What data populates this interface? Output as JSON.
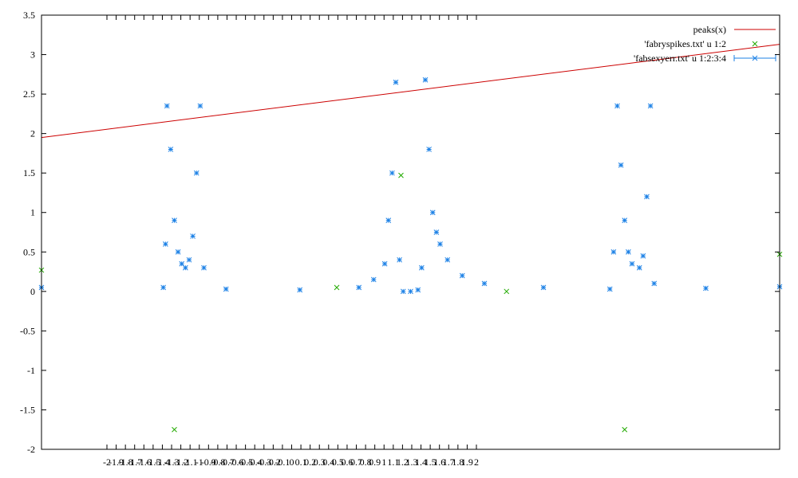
{
  "chart_data": {
    "type": "scatter",
    "title": "",
    "xlabel": "",
    "ylabel": "",
    "xlim": [
      0,
      1
    ],
    "ylim": [
      -2,
      3.5
    ],
    "grid": false,
    "legend_position": "top-right",
    "y_ticks": [
      "-2",
      "-1.5",
      "-1",
      "-0.5",
      "0",
      "0.5",
      "1",
      "1.5",
      "2",
      "2.5",
      "3",
      "3.5"
    ],
    "x_ticks": [
      "-2",
      "-1.9",
      "-1.8",
      "-1.7",
      "-1.6",
      "-1.5",
      "-1.4",
      "-1.3",
      "-1.2",
      "-1.1",
      "-1",
      "-0.9",
      "-0.8",
      "-0.7",
      "-0.6",
      "-0.5",
      "-0.4",
      "-0.3",
      "-0.2",
      "-0.1",
      "0",
      "0.1",
      "0.2",
      "0.3",
      "0.4",
      "0.5",
      "0.6",
      "0.7",
      "0.8",
      "0.9",
      "1",
      "1.1",
      "1.2",
      "1.3",
      "1.4",
      "1.5",
      "1.6",
      "1.7",
      "1.8",
      "1.9",
      "2"
    ],
    "series": [
      {
        "name": "peaks(x)",
        "kind": "line",
        "color": "#cc0000",
        "x": [
          0,
          1
        ],
        "y": [
          1.95,
          3.13
        ]
      },
      {
        "name": "'fabryspikes.txt' u 1:2",
        "kind": "scatter",
        "marker": "x",
        "color": "#22aa00",
        "x": [
          0,
          0.18,
          0.4,
          0.487,
          0.63,
          0.79,
          1
        ],
        "y": [
          0.27,
          -1.75,
          0.05,
          1.47,
          0.0,
          -1.75,
          0.47
        ]
      },
      {
        "name": "'fabsexyerr.txt' u 1:2:3:4",
        "kind": "scatter",
        "marker": "star",
        "color": "#1e82e6",
        "x": [
          0.0,
          0.165,
          0.168,
          0.17,
          0.175,
          0.18,
          0.185,
          0.19,
          0.195,
          0.2,
          0.205,
          0.21,
          0.215,
          0.22,
          0.25,
          0.35,
          0.43,
          0.45,
          0.465,
          0.47,
          0.475,
          0.48,
          0.485,
          0.49,
          0.5,
          0.51,
          0.515,
          0.52,
          0.525,
          0.53,
          0.535,
          0.54,
          0.55,
          0.57,
          0.6,
          0.68,
          0.77,
          0.775,
          0.78,
          0.785,
          0.79,
          0.795,
          0.8,
          0.81,
          0.815,
          0.82,
          0.825,
          0.83,
          0.9,
          1.0
        ],
        "y": [
          0.05,
          0.05,
          0.6,
          2.35,
          1.8,
          0.9,
          0.5,
          0.35,
          0.3,
          0.4,
          0.7,
          1.5,
          2.35,
          0.3,
          0.03,
          0.02,
          0.05,
          0.15,
          0.35,
          0.9,
          1.5,
          2.65,
          0.4,
          0.0,
          0.0,
          0.02,
          0.3,
          2.68,
          1.8,
          1.0,
          0.75,
          0.6,
          0.4,
          0.2,
          0.1,
          0.05,
          0.03,
          0.5,
          2.35,
          1.6,
          0.9,
          0.5,
          0.35,
          0.3,
          0.45,
          1.2,
          2.35,
          0.1,
          0.04,
          0.06
        ]
      }
    ]
  }
}
